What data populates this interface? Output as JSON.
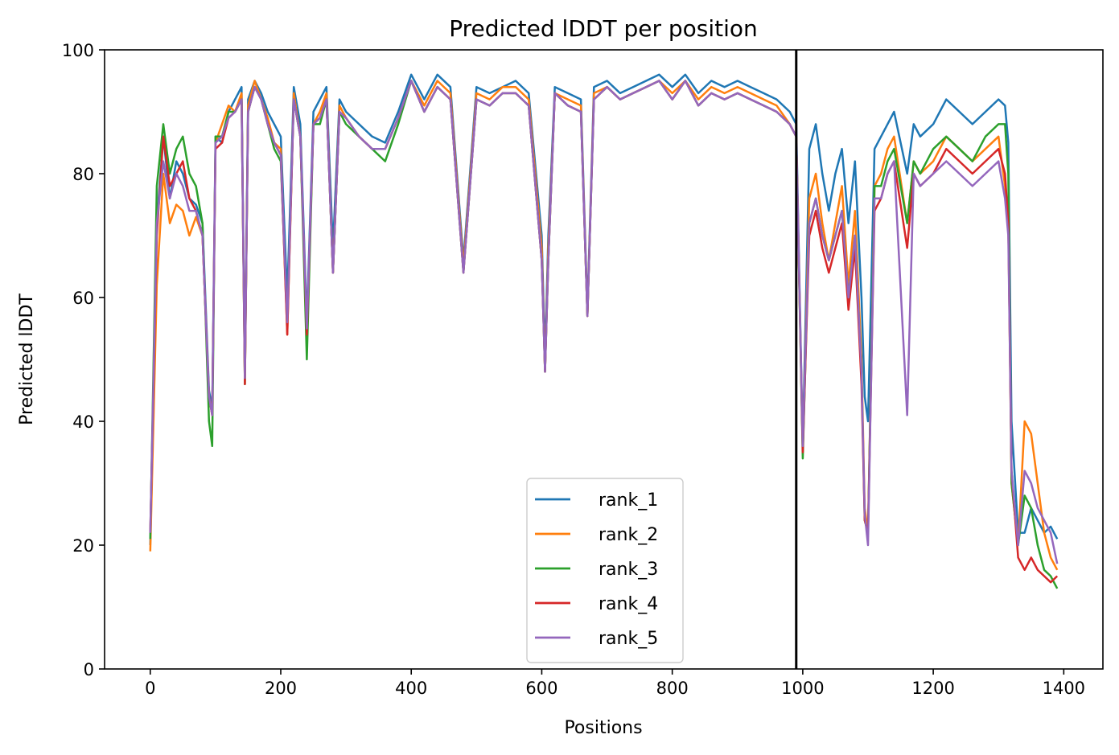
{
  "chart_data": {
    "type": "line",
    "title": "Predicted lDDT per position",
    "xlabel": "Positions",
    "ylabel": "Predicted lDDT",
    "xlim": [
      -70,
      1460
    ],
    "ylim": [
      0,
      100
    ],
    "xticks": [
      0,
      200,
      400,
      600,
      800,
      1000,
      1200,
      1400
    ],
    "yticks": [
      0,
      20,
      40,
      60,
      80,
      100
    ],
    "grid": false,
    "legend_position": "lower-center",
    "vline_x": 990,
    "colors": {
      "rank_1": "#1f77b4",
      "rank_2": "#ff7f0e",
      "rank_3": "#2ca02c",
      "rank_4": "#d62728",
      "rank_5": "#9467bd",
      "vline": "#000000"
    },
    "x": [
      0,
      10,
      20,
      30,
      40,
      50,
      60,
      70,
      80,
      90,
      95,
      100,
      110,
      120,
      130,
      140,
      145,
      150,
      160,
      170,
      180,
      190,
      200,
      210,
      220,
      230,
      240,
      250,
      260,
      270,
      280,
      290,
      300,
      320,
      340,
      360,
      380,
      400,
      420,
      440,
      460,
      480,
      500,
      520,
      540,
      560,
      580,
      600,
      605,
      610,
      620,
      640,
      660,
      670,
      680,
      700,
      720,
      740,
      760,
      780,
      800,
      820,
      840,
      860,
      880,
      900,
      920,
      940,
      960,
      980,
      990,
      1000,
      1010,
      1020,
      1030,
      1040,
      1050,
      1060,
      1070,
      1080,
      1090,
      1095,
      1100,
      1110,
      1120,
      1130,
      1140,
      1160,
      1170,
      1180,
      1200,
      1220,
      1240,
      1260,
      1280,
      1300,
      1310,
      1315,
      1320,
      1330,
      1340,
      1350,
      1360,
      1370,
      1380,
      1390
    ],
    "series": [
      {
        "name": "rank_1",
        "values": [
          20,
          72,
          86,
          76,
          82,
          80,
          76,
          75,
          72,
          45,
          42,
          86,
          85,
          90,
          92,
          94,
          48,
          92,
          95,
          93,
          90,
          88,
          86,
          60,
          94,
          88,
          56,
          90,
          92,
          94,
          68,
          92,
          90,
          88,
          86,
          85,
          90,
          96,
          92,
          96,
          94,
          66,
          94,
          93,
          94,
          95,
          93,
          70,
          50,
          70,
          94,
          93,
          92,
          58,
          94,
          95,
          93,
          94,
          95,
          96,
          94,
          96,
          93,
          95,
          94,
          95,
          94,
          93,
          92,
          90,
          88,
          36,
          84,
          88,
          80,
          74,
          80,
          84,
          72,
          82,
          60,
          44,
          40,
          84,
          86,
          88,
          90,
          80,
          88,
          86,
          88,
          92,
          90,
          88,
          90,
          92,
          91,
          85,
          40,
          22,
          22,
          26,
          24,
          22,
          23,
          21
        ]
      },
      {
        "name": "rank_2",
        "values": [
          19,
          62,
          80,
          72,
          75,
          74,
          70,
          73,
          70,
          44,
          41,
          85,
          88,
          91,
          90,
          93,
          46,
          91,
          95,
          92,
          89,
          85,
          84,
          54,
          93,
          86,
          54,
          88,
          90,
          93,
          64,
          91,
          89,
          86,
          84,
          84,
          89,
          95,
          91,
          95,
          93,
          65,
          93,
          92,
          94,
          94,
          92,
          68,
          48,
          68,
          93,
          92,
          91,
          57,
          93,
          94,
          92,
          93,
          94,
          95,
          93,
          95,
          92,
          94,
          93,
          94,
          93,
          92,
          91,
          88,
          86,
          35,
          76,
          80,
          72,
          66,
          72,
          78,
          62,
          74,
          50,
          26,
          22,
          78,
          80,
          84,
          86,
          72,
          82,
          80,
          82,
          86,
          84,
          82,
          84,
          86,
          78,
          72,
          30,
          20,
          40,
          38,
          30,
          22,
          18,
          16
        ]
      },
      {
        "name": "rank_3",
        "values": [
          21,
          78,
          88,
          80,
          84,
          86,
          80,
          78,
          72,
          40,
          36,
          86,
          86,
          90,
          90,
          92,
          46,
          90,
          94,
          92,
          88,
          84,
          82,
          56,
          92,
          86,
          50,
          88,
          88,
          92,
          64,
          90,
          88,
          86,
          84,
          82,
          88,
          95,
          90,
          94,
          92,
          64,
          92,
          91,
          93,
          93,
          91,
          66,
          48,
          66,
          93,
          91,
          90,
          57,
          92,
          94,
          92,
          93,
          94,
          95,
          92,
          95,
          91,
          93,
          92,
          93,
          92,
          91,
          90,
          88,
          86,
          34,
          72,
          76,
          70,
          66,
          70,
          74,
          60,
          70,
          48,
          24,
          22,
          78,
          78,
          82,
          84,
          72,
          82,
          80,
          84,
          86,
          84,
          82,
          86,
          88,
          88,
          80,
          30,
          20,
          28,
          26,
          20,
          16,
          15,
          13
        ]
      },
      {
        "name": "rank_4",
        "values": [
          22,
          70,
          86,
          78,
          80,
          82,
          76,
          74,
          70,
          44,
          41,
          84,
          85,
          89,
          90,
          92,
          46,
          90,
          94,
          92,
          88,
          85,
          83,
          54,
          92,
          86,
          54,
          88,
          89,
          92,
          64,
          90,
          89,
          86,
          84,
          84,
          89,
          95,
          90,
          94,
          92,
          64,
          92,
          91,
          93,
          93,
          91,
          66,
          48,
          66,
          93,
          91,
          90,
          57,
          92,
          94,
          92,
          93,
          94,
          95,
          92,
          95,
          91,
          93,
          92,
          93,
          92,
          91,
          90,
          88,
          86,
          35,
          70,
          74,
          68,
          64,
          68,
          72,
          58,
          68,
          46,
          24,
          22,
          74,
          76,
          80,
          82,
          68,
          80,
          78,
          80,
          84,
          82,
          80,
          82,
          84,
          80,
          72,
          32,
          18,
          16,
          18,
          16,
          15,
          14,
          15
        ]
      },
      {
        "name": "rank_5",
        "values": [
          22,
          72,
          82,
          76,
          80,
          78,
          74,
          74,
          70,
          44,
          41,
          85,
          86,
          89,
          90,
          92,
          47,
          90,
          94,
          92,
          88,
          85,
          83,
          56,
          92,
          86,
          55,
          88,
          89,
          92,
          64,
          90,
          89,
          86,
          84,
          84,
          89,
          95,
          90,
          94,
          92,
          64,
          92,
          91,
          93,
          93,
          91,
          66,
          48,
          66,
          93,
          91,
          90,
          57,
          92,
          94,
          92,
          93,
          94,
          95,
          92,
          95,
          91,
          93,
          92,
          93,
          92,
          91,
          90,
          88,
          86,
          36,
          72,
          76,
          70,
          66,
          70,
          74,
          60,
          70,
          48,
          25,
          20,
          76,
          76,
          80,
          82,
          41,
          80,
          78,
          80,
          82,
          80,
          78,
          80,
          82,
          76,
          70,
          32,
          20,
          32,
          30,
          26,
          24,
          22,
          17
        ]
      }
    ]
  }
}
